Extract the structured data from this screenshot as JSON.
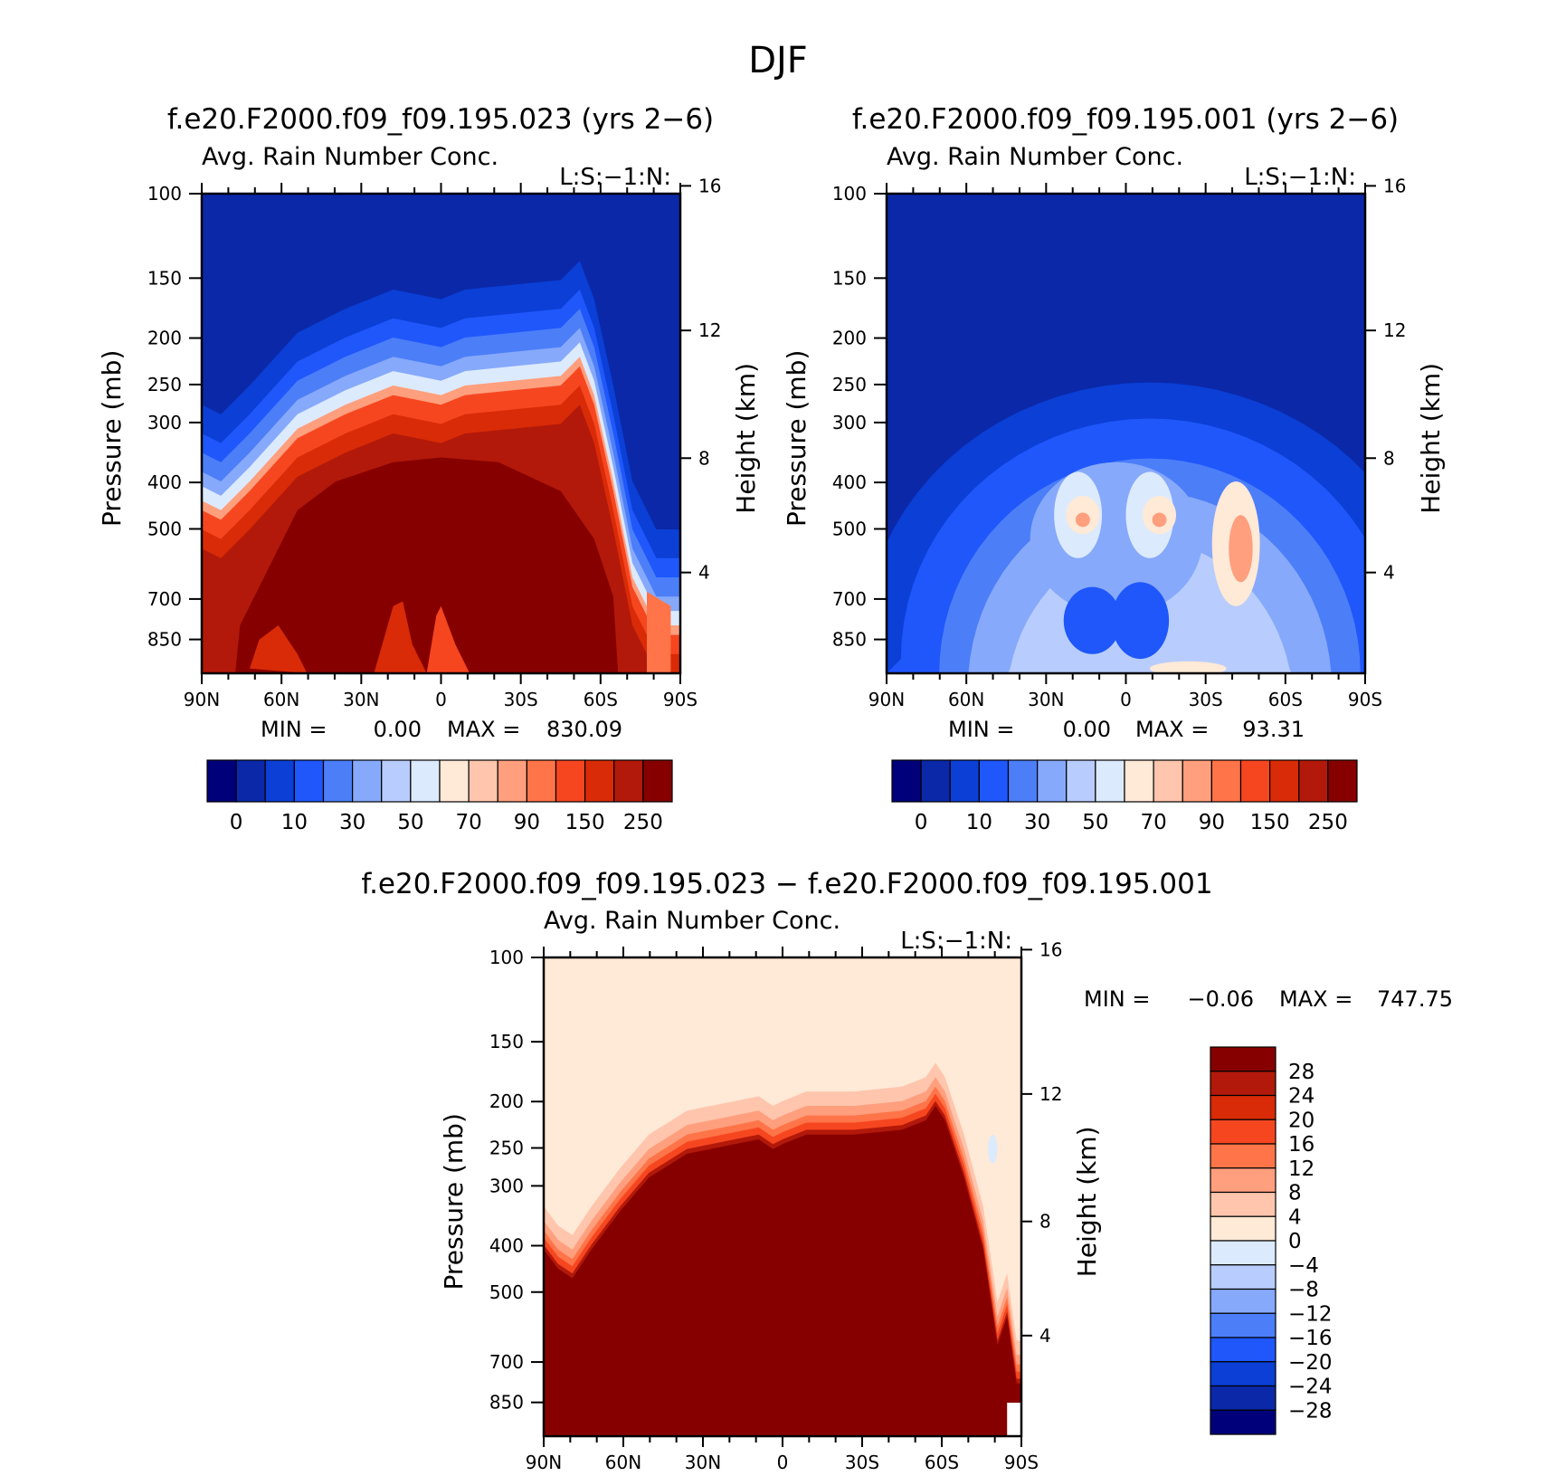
{
  "figure": {
    "title": "DJF"
  },
  "chart_data": [
    {
      "type": "contour",
      "title": "f.e20.F2000.f09_f09.195.023 (yrs 2−6)",
      "subtitle": "Avg. Rain Number Conc.",
      "corner_label": "L:S:−1:N:",
      "ylabel": "Pressure (mb)",
      "ylabel_right": "Height (km)",
      "y_ticks": [
        "100",
        "150",
        "200",
        "250",
        "300",
        "400",
        "500",
        "700",
        "850"
      ],
      "y_ticks_right": [
        "16",
        "12",
        "8",
        "4"
      ],
      "x_ticks": [
        "90N",
        "60N",
        "30N",
        "0",
        "30S",
        "60S",
        "90S"
      ],
      "min_label": "MIN =",
      "min_value": "0.00",
      "max_label": "MAX =",
      "max_value": "830.09",
      "colorbar_labels": [
        "0",
        "10",
        "30",
        "50",
        "70",
        "90",
        "150",
        "250"
      ],
      "colorbar_colors": [
        "#00007a",
        "#0a28a8",
        "#0b3fd6",
        "#1f57fb",
        "#4c7ef8",
        "#86a9fb",
        "#b8cdfd",
        "#dceafe",
        "#ffe9d7",
        "#ffc6ad",
        "#ff9f7e",
        "#ff7448",
        "#f64620",
        "#d92b07",
        "#b2190a",
        "#870000"
      ]
    },
    {
      "type": "contour",
      "title": "f.e20.F2000.f09_f09.195.001 (yrs 2−6)",
      "subtitle": "Avg. Rain Number Conc.",
      "corner_label": "L:S:−1:N:",
      "ylabel": "Pressure (mb)",
      "ylabel_right": "Height (km)",
      "y_ticks": [
        "100",
        "150",
        "200",
        "250",
        "300",
        "400",
        "500",
        "700",
        "850"
      ],
      "y_ticks_right": [
        "16",
        "12",
        "8",
        "4"
      ],
      "x_ticks": [
        "90N",
        "60N",
        "30N",
        "0",
        "30S",
        "60S",
        "90S"
      ],
      "min_label": "MIN =",
      "min_value": "0.00",
      "max_label": "MAX =",
      "max_value": "93.31",
      "colorbar_labels": [
        "0",
        "10",
        "30",
        "50",
        "70",
        "90",
        "150",
        "250"
      ]
    },
    {
      "type": "contour",
      "title": "f.e20.F2000.f09_f09.195.023 − f.e20.F2000.f09_f09.195.001",
      "subtitle": "Avg. Rain Number Conc.",
      "corner_label": "L:S:−1:N:",
      "ylabel": "Pressure (mb)",
      "ylabel_right": "Height (km)",
      "y_ticks": [
        "100",
        "150",
        "200",
        "250",
        "300",
        "400",
        "500",
        "700",
        "850"
      ],
      "y_ticks_right": [
        "16",
        "12",
        "8",
        "4"
      ],
      "x_ticks": [
        "90N",
        "60N",
        "30N",
        "0",
        "30S",
        "60S",
        "90S"
      ],
      "min_label": "MIN =",
      "min_value": "−0.06",
      "max_label": "MAX =",
      "max_value": "747.75",
      "colorbar_labels": [
        "28",
        "24",
        "20",
        "16",
        "12",
        "8",
        "4",
        "0",
        "−4",
        "−8",
        "−12",
        "−16",
        "−20",
        "−24",
        "−28"
      ],
      "colorbar_colors": [
        "#870000",
        "#b2190a",
        "#d92b07",
        "#f64620",
        "#ff7448",
        "#ff9f7e",
        "#ffc6ad",
        "#ffe9d7",
        "#dceafe",
        "#b8cdfd",
        "#86a9fb",
        "#4c7ef8",
        "#1f57fb",
        "#0b3fd6",
        "#0a28a8",
        "#00007a"
      ]
    }
  ]
}
